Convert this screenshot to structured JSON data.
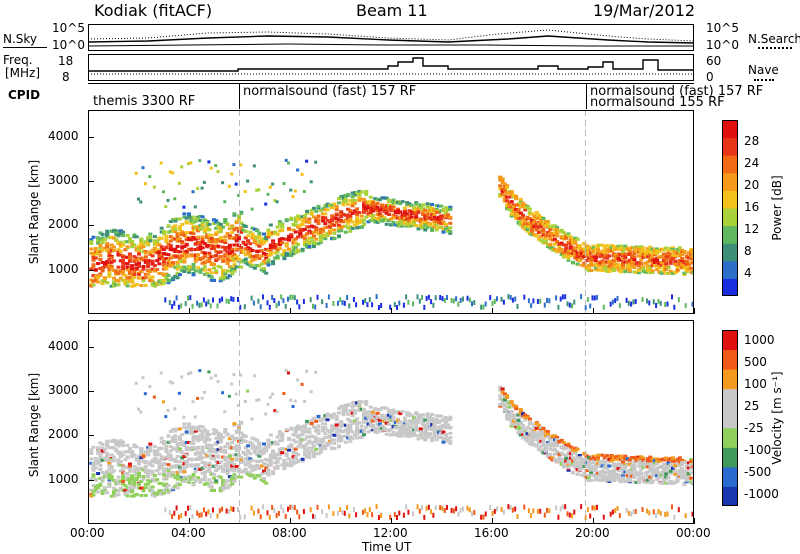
{
  "header": {
    "station": "Kodiak (fitACF)",
    "beam": "Beam 11",
    "date": "19/Mar/2012"
  },
  "noise_panel": {
    "left_label": "N.Sky",
    "right_label": "N.Search",
    "left_ticks": [
      "10^5",
      "10^0"
    ],
    "right_ticks": [
      "10^5",
      "10^0"
    ]
  },
  "freq_panel": {
    "left_label_line1": "Freq.",
    "left_label_line2": "[MHz]",
    "right_label": "Nave",
    "left_ticks": [
      "18",
      "8"
    ],
    "right_ticks": [
      "60",
      "0"
    ]
  },
  "cpid_panel": {
    "label": "CPID",
    "segments": [
      "themis 3300 RF",
      "normalsound (fast) 157 RF",
      "normalsound (fast) 157 RF",
      "normalsound 155 RF"
    ]
  },
  "colors": {
    "power": [
      "#1a2ee0",
      "#2b6fc9",
      "#3e8f78",
      "#5fb85f",
      "#a9d23a",
      "#f2c21b",
      "#f59a1a",
      "#f06a14",
      "#e8351a",
      "#e01010"
    ],
    "velocity": [
      "#e00f10",
      "#f05a18",
      "#f39a1f",
      "#c8c8c8",
      "#c8c8c8",
      "#8fd05a",
      "#3e9a5a",
      "#2b6bd0",
      "#1a35b0"
    ]
  },
  "chart_data": [
    {
      "type": "heatmap",
      "title": "",
      "quantity": "Power",
      "xlabel": "Time UT",
      "ylabel": "Slant Range [km]",
      "xticks": [
        "00:00",
        "04:00",
        "08:00",
        "12:00",
        "16:00",
        "20:00",
        "00:00"
      ],
      "xlim_hours": [
        0,
        24
      ],
      "ylim_km": [
        0,
        4600
      ],
      "yticks": [
        1000,
        2000,
        3000,
        4000
      ],
      "colorbar_label": "Power [dB]",
      "colorbar_ticks": [
        4,
        8,
        12,
        16,
        20,
        24,
        28
      ],
      "colorbar_range": [
        0,
        32
      ]
    },
    {
      "type": "heatmap",
      "title": "",
      "quantity": "Velocity",
      "xlabel": "Time UT",
      "ylabel": "Slant Range [km]",
      "xticks": [
        "00:00",
        "04:00",
        "08:00",
        "12:00",
        "16:00",
        "20:00",
        "00:00"
      ],
      "xlim_hours": [
        0,
        24
      ],
      "ylim_km": [
        0,
        4600
      ],
      "yticks": [
        1000,
        2000,
        3000,
        4000
      ],
      "colorbar_label": "Velocity [m s⁻¹]",
      "colorbar_ticks": [
        1000,
        500,
        100,
        25,
        -25,
        -100,
        -500,
        -1000
      ]
    }
  ],
  "xaxis": {
    "ticks": [
      "00:00",
      "04:00",
      "08:00",
      "12:00",
      "16:00",
      "20:00",
      "00:00"
    ],
    "label": "Time UT"
  }
}
